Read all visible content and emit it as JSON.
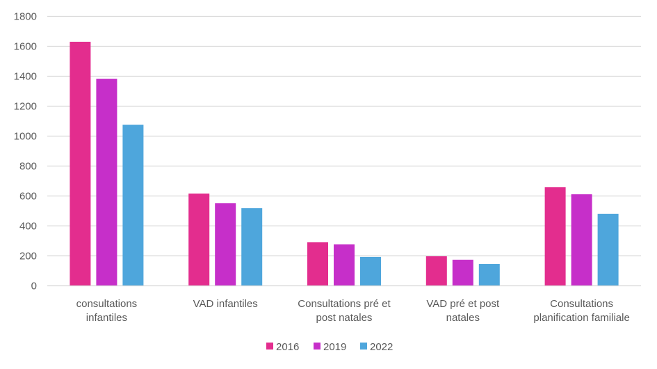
{
  "chart_data": {
    "type": "bar",
    "title": "",
    "xlabel": "",
    "ylabel": "",
    "ylim": [
      0,
      1800
    ],
    "yticks": [
      0,
      200,
      400,
      600,
      800,
      1000,
      1200,
      1400,
      1600,
      1800
    ],
    "grid": true,
    "legend_position": "bottom",
    "categories": [
      [
        "consultations",
        "infantiles"
      ],
      [
        "VAD infantiles"
      ],
      [
        "Consultations pré et",
        "post natales"
      ],
      [
        "VAD pré et post",
        "natales"
      ],
      [
        "Consultations",
        "planification familiale"
      ]
    ],
    "series": [
      {
        "name": "2016",
        "color": "#E32D8E",
        "values": [
          1628,
          614,
          288,
          195,
          656
        ]
      },
      {
        "name": "2019",
        "color": "#C62FC9",
        "values": [
          1381,
          549,
          274,
          172,
          609
        ]
      },
      {
        "name": "2022",
        "color": "#4EA6DC",
        "values": [
          1074,
          516,
          191,
          144,
          479
        ]
      }
    ]
  }
}
